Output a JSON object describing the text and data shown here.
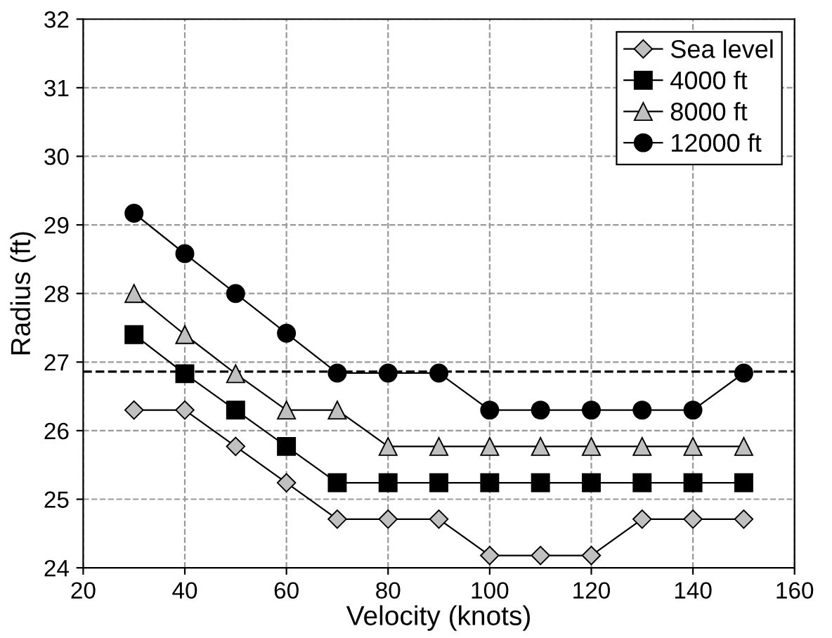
{
  "chart_data": {
    "type": "line",
    "xlabel": "Velocity (knots)",
    "ylabel": "Radius (ft)",
    "x": [
      30,
      40,
      50,
      60,
      70,
      80,
      90,
      100,
      110,
      120,
      130,
      140,
      150
    ],
    "series": [
      {
        "name": "Sea level",
        "color": "#c0c0c0",
        "marker": "diamond",
        "values": [
          26.3,
          26.3,
          25.77,
          25.24,
          24.71,
          24.71,
          24.71,
          24.18,
          24.18,
          24.18,
          24.71,
          24.71,
          24.71
        ]
      },
      {
        "name": "4000 ft",
        "color": "#000000",
        "marker": "square",
        "values": [
          27.4,
          26.83,
          26.3,
          25.77,
          25.24,
          25.24,
          25.24,
          25.24,
          25.24,
          25.24,
          25.24,
          25.24,
          25.24
        ]
      },
      {
        "name": "8000 ft",
        "color": "#c0c0c0",
        "marker": "triangle",
        "values": [
          28.0,
          27.4,
          26.83,
          26.3,
          26.3,
          25.77,
          25.77,
          25.77,
          25.77,
          25.77,
          25.77,
          25.77,
          25.77
        ]
      },
      {
        "name": "12000 ft",
        "color": "#000000",
        "marker": "circle",
        "values": [
          29.17,
          28.58,
          28.0,
          27.42,
          26.84,
          26.84,
          26.84,
          26.3,
          26.3,
          26.3,
          26.3,
          26.3,
          26.84
        ]
      }
    ],
    "xlim": [
      20,
      160
    ],
    "xticks": [
      20,
      40,
      60,
      80,
      100,
      120,
      140,
      160
    ],
    "ylim": [
      24,
      32
    ],
    "yticks": [
      24,
      25,
      26,
      27,
      28,
      29,
      30,
      31,
      32
    ],
    "ref_lines": [
      {
        "axis": "y",
        "value": 26.86,
        "color": "#000000",
        "line_style": "dashed"
      }
    ],
    "grid": true,
    "legend": "top right",
    "line_style": "solid"
  }
}
